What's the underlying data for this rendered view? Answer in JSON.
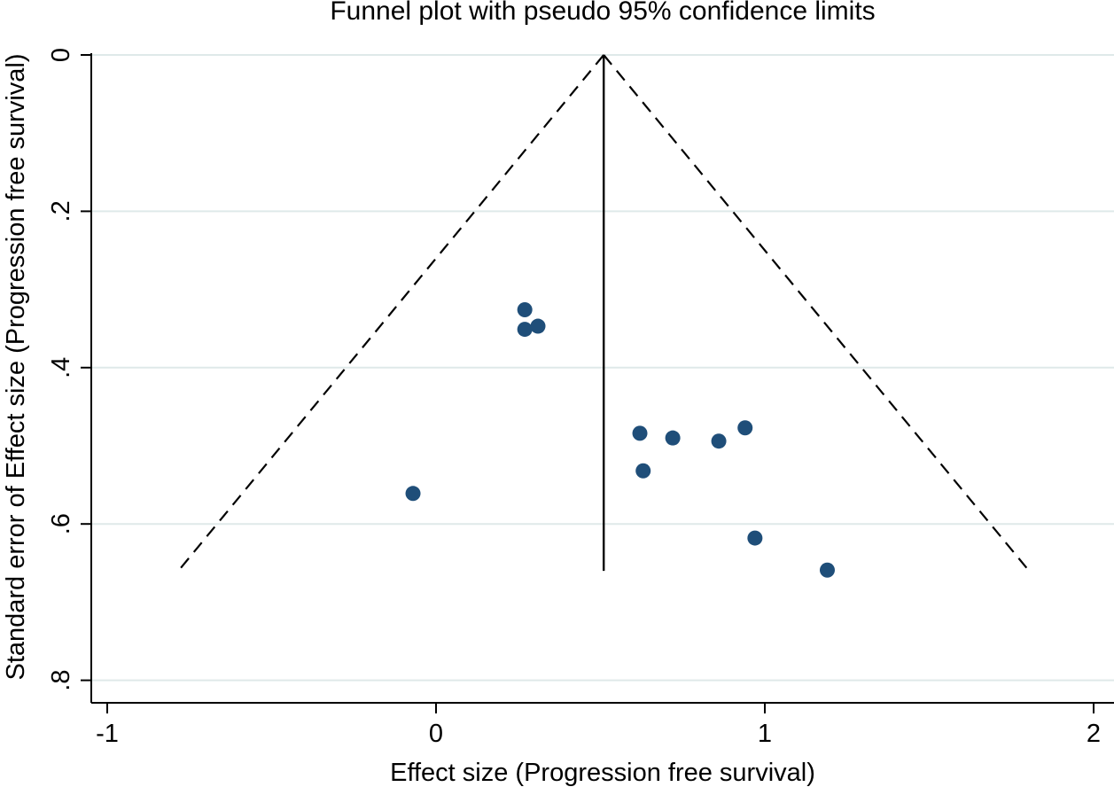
{
  "chart_data": {
    "type": "scatter",
    "title": "Funnel plot with pseudo 95% confidence limits",
    "xlabel": "Effect size (Progression free survival)",
    "ylabel": "Standard error of Effect size (Progression free survival)",
    "xlim": [
      -1.05,
      2.05
    ],
    "ylim": [
      0,
      0.83
    ],
    "y_reversed": true,
    "x_ticks": [
      -1,
      0,
      1,
      2
    ],
    "x_tick_labels": [
      "-1",
      "0",
      "1",
      "2"
    ],
    "y_ticks": [
      0,
      0.2,
      0.4,
      0.6,
      0.8
    ],
    "y_tick_labels": [
      "0",
      ".2",
      ".4",
      ".6",
      ".8"
    ],
    "grid": true,
    "pooled_effect": 0.51,
    "max_se": 0.66,
    "ci_multiplier": 1.96,
    "points": [
      {
        "x": 0.27,
        "y": 0.326
      },
      {
        "x": 0.27,
        "y": 0.351
      },
      {
        "x": 0.31,
        "y": 0.347
      },
      {
        "x": -0.07,
        "y": 0.561
      },
      {
        "x": 0.62,
        "y": 0.484
      },
      {
        "x": 0.72,
        "y": 0.49
      },
      {
        "x": 0.86,
        "y": 0.494
      },
      {
        "x": 0.94,
        "y": 0.477
      },
      {
        "x": 0.63,
        "y": 0.532
      },
      {
        "x": 0.97,
        "y": 0.618
      },
      {
        "x": 1.19,
        "y": 0.659
      }
    ],
    "colors": {
      "points": "#1f4e79",
      "grid": "#dfe9e9",
      "lines": "#000000"
    }
  }
}
